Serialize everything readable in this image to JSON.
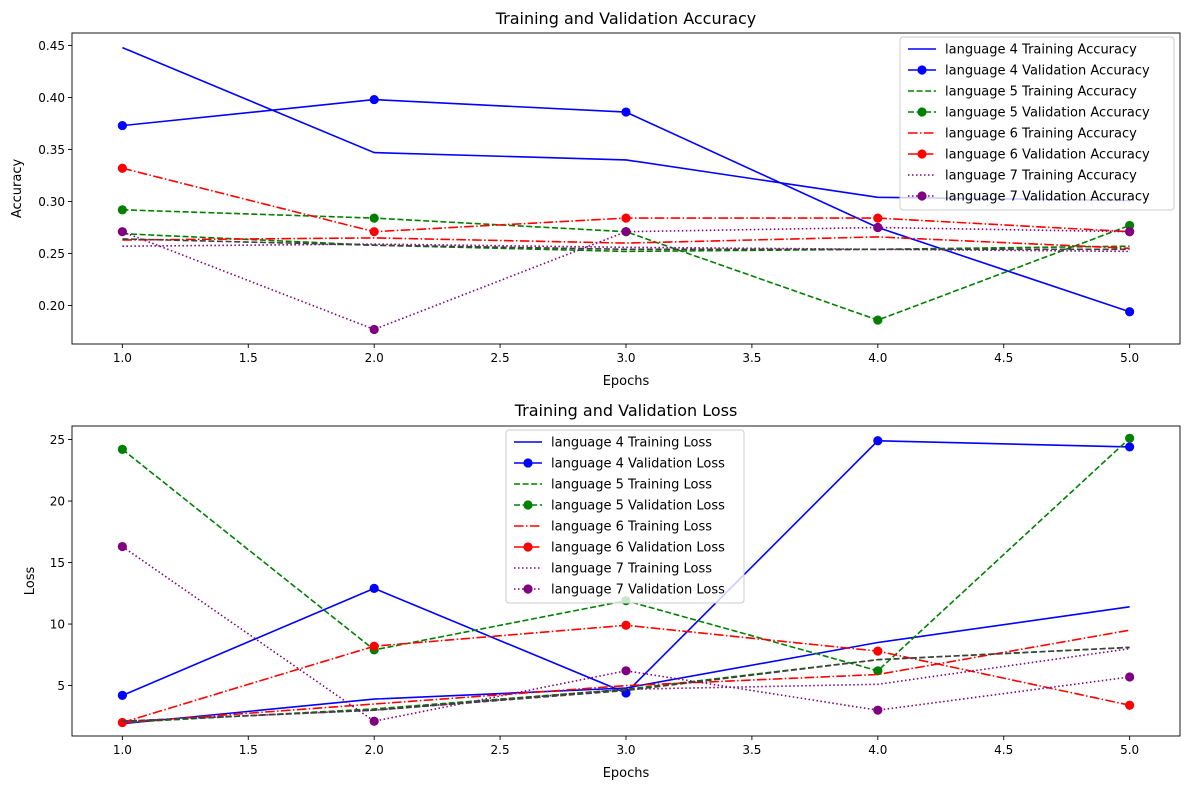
{
  "chart_data": [
    {
      "type": "line",
      "title": "Training and Validation Accuracy",
      "xlabel": "Epochs",
      "ylabel": "Accuracy",
      "xlim": [
        0.8,
        5.2
      ],
      "ylim": [
        0.163,
        0.462
      ],
      "xticks": [
        "1.0",
        "1.5",
        "2.0",
        "2.5",
        "3.0",
        "3.5",
        "4.0",
        "4.5",
        "5.0"
      ],
      "yticks": [
        "0.20",
        "0.25",
        "0.30",
        "0.35",
        "0.40",
        "0.45"
      ],
      "legend_placement": "top-right",
      "x": [
        1,
        2,
        3,
        4,
        5
      ],
      "series": [
        {
          "name": "language 4 Training Accuracy",
          "color": "#0000ff",
          "dash": "solid",
          "marker": false,
          "values": [
            0.448,
            0.347,
            0.34,
            0.304,
            0.301
          ]
        },
        {
          "name": "language 4 Validation Accuracy",
          "color": "#0000ff",
          "dash": "solid",
          "marker": true,
          "values": [
            0.373,
            0.398,
            0.386,
            0.275,
            0.194
          ]
        },
        {
          "name": "language 5 Training Accuracy",
          "color": "#008000",
          "dash": "dashed",
          "marker": false,
          "values": [
            0.269,
            0.258,
            0.252,
            0.254,
            0.257
          ]
        },
        {
          "name": "language 5 Validation Accuracy",
          "color": "#008000",
          "dash": "dashed",
          "marker": true,
          "values": [
            0.292,
            0.284,
            0.271,
            0.186,
            0.277
          ]
        },
        {
          "name": "language 6 Training Accuracy",
          "color": "#ff0000",
          "dash": "dashdot",
          "marker": false,
          "values": [
            0.263,
            0.265,
            0.26,
            0.266,
            0.255
          ]
        },
        {
          "name": "language 6 Validation Accuracy",
          "color": "#ff0000",
          "dash": "dashdot",
          "marker": true,
          "values": [
            0.332,
            0.271,
            0.284,
            0.284,
            0.271
          ]
        },
        {
          "name": "language 7 Training Accuracy",
          "color": "#800080",
          "dash": "dotted",
          "marker": false,
          "values": [
            0.257,
            0.259,
            0.256,
            0.254,
            0.252
          ]
        },
        {
          "name": "language 7 Validation Accuracy",
          "color": "#800080",
          "dash": "dotted",
          "marker": true,
          "values": [
            0.271,
            0.177,
            0.271,
            0.275,
            0.271
          ]
        }
      ],
      "extra_line": {
        "color": "#404040",
        "dash": "dashed",
        "values": [
          0.264,
          0.258,
          0.254,
          0.254,
          0.254
        ]
      }
    },
    {
      "type": "line",
      "title": "Training and Validation Loss",
      "xlabel": "Epochs",
      "ylabel": "Loss",
      "xlim": [
        0.8,
        5.2
      ],
      "ylim": [
        0.9,
        26.1
      ],
      "xticks": [
        "1.0",
        "1.5",
        "2.0",
        "2.5",
        "3.0",
        "3.5",
        "4.0",
        "4.5",
        "5.0"
      ],
      "yticks": [
        "5",
        "10",
        "15",
        "20",
        "25"
      ],
      "legend_placement": "upper-center",
      "x": [
        1,
        2,
        3,
        4,
        5
      ],
      "series": [
        {
          "name": "language 4 Training Loss",
          "color": "#0000ff",
          "dash": "solid",
          "marker": false,
          "values": [
            1.9,
            3.9,
            4.8,
            8.5,
            11.4
          ]
        },
        {
          "name": "language 4 Validation Loss",
          "color": "#0000ff",
          "dash": "solid",
          "marker": true,
          "values": [
            4.2,
            12.9,
            4.4,
            24.9,
            24.4
          ]
        },
        {
          "name": "language 5 Training Loss",
          "color": "#008000",
          "dash": "dashed",
          "marker": false,
          "values": [
            2.0,
            3.1,
            4.7,
            7.1,
            8.1
          ]
        },
        {
          "name": "language 5 Validation Loss",
          "color": "#008000",
          "dash": "dashed",
          "marker": true,
          "values": [
            24.2,
            7.9,
            11.9,
            6.2,
            25.1
          ]
        },
        {
          "name": "language 6 Training Loss",
          "color": "#ff0000",
          "dash": "dashdot",
          "marker": false,
          "values": [
            2.0,
            3.5,
            5.0,
            5.9,
            9.5
          ]
        },
        {
          "name": "language 6 Validation Loss",
          "color": "#ff0000",
          "dash": "dashdot",
          "marker": true,
          "values": [
            2.0,
            8.2,
            9.9,
            7.8,
            3.4
          ]
        },
        {
          "name": "language 7 Training Loss",
          "color": "#800080",
          "dash": "dotted",
          "marker": false,
          "values": [
            2.1,
            3.0,
            4.7,
            5.1,
            8.0
          ]
        },
        {
          "name": "language 7 Validation Loss",
          "color": "#800080",
          "dash": "dotted",
          "marker": true,
          "values": [
            16.3,
            2.1,
            6.2,
            3.0,
            5.7
          ]
        }
      ],
      "extra_line": {
        "color": "#404040",
        "dash": "dashed",
        "values": [
          2.1,
          3.0,
          4.6,
          7.1,
          8.1
        ]
      }
    }
  ]
}
